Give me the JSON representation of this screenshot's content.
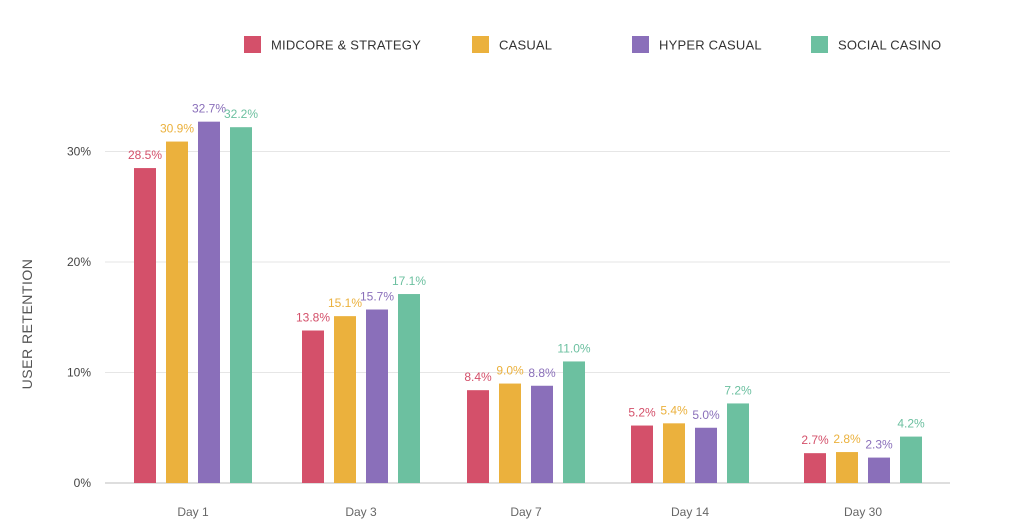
{
  "chart_data": {
    "type": "bar",
    "title": "",
    "xlabel": "",
    "ylabel": "USER RETENTION",
    "ylim": [
      0,
      35
    ],
    "yticks": [
      0,
      10,
      20,
      30
    ],
    "ytick_labels": [
      "0%",
      "10%",
      "20%",
      "30%"
    ],
    "grid": true,
    "legend_position": "top",
    "categories": [
      "Day 1",
      "Day 3",
      "Day 7",
      "Day 14",
      "Day 30"
    ],
    "series": [
      {
        "name": "MIDCORE & STRATEGY",
        "color": "#d4506a",
        "values": [
          28.5,
          13.8,
          8.4,
          5.2,
          2.7
        ],
        "labels": [
          "28.5%",
          "13.8%",
          "8.4%",
          "5.2%",
          "2.7%"
        ]
      },
      {
        "name": "CASUAL",
        "color": "#ebb13d",
        "values": [
          30.9,
          15.1,
          9.0,
          5.4,
          2.8
        ],
        "labels": [
          "30.9%",
          "15.1%",
          "9.0%",
          "5.4%",
          "2.8%"
        ]
      },
      {
        "name": "HYPER CASUAL",
        "color": "#8a6fba",
        "values": [
          32.7,
          15.7,
          8.8,
          5.0,
          2.3
        ],
        "labels": [
          "32.7%",
          "15.7%",
          "8.8%",
          "5.0%",
          "2.3%"
        ]
      },
      {
        "name": "SOCIAL CASINO",
        "color": "#6cc0a0",
        "values": [
          32.2,
          17.1,
          11.0,
          7.2,
          4.2
        ],
        "labels": [
          "32.2%",
          "17.1%",
          "11.0%",
          "7.2%",
          "4.2%"
        ]
      }
    ]
  }
}
